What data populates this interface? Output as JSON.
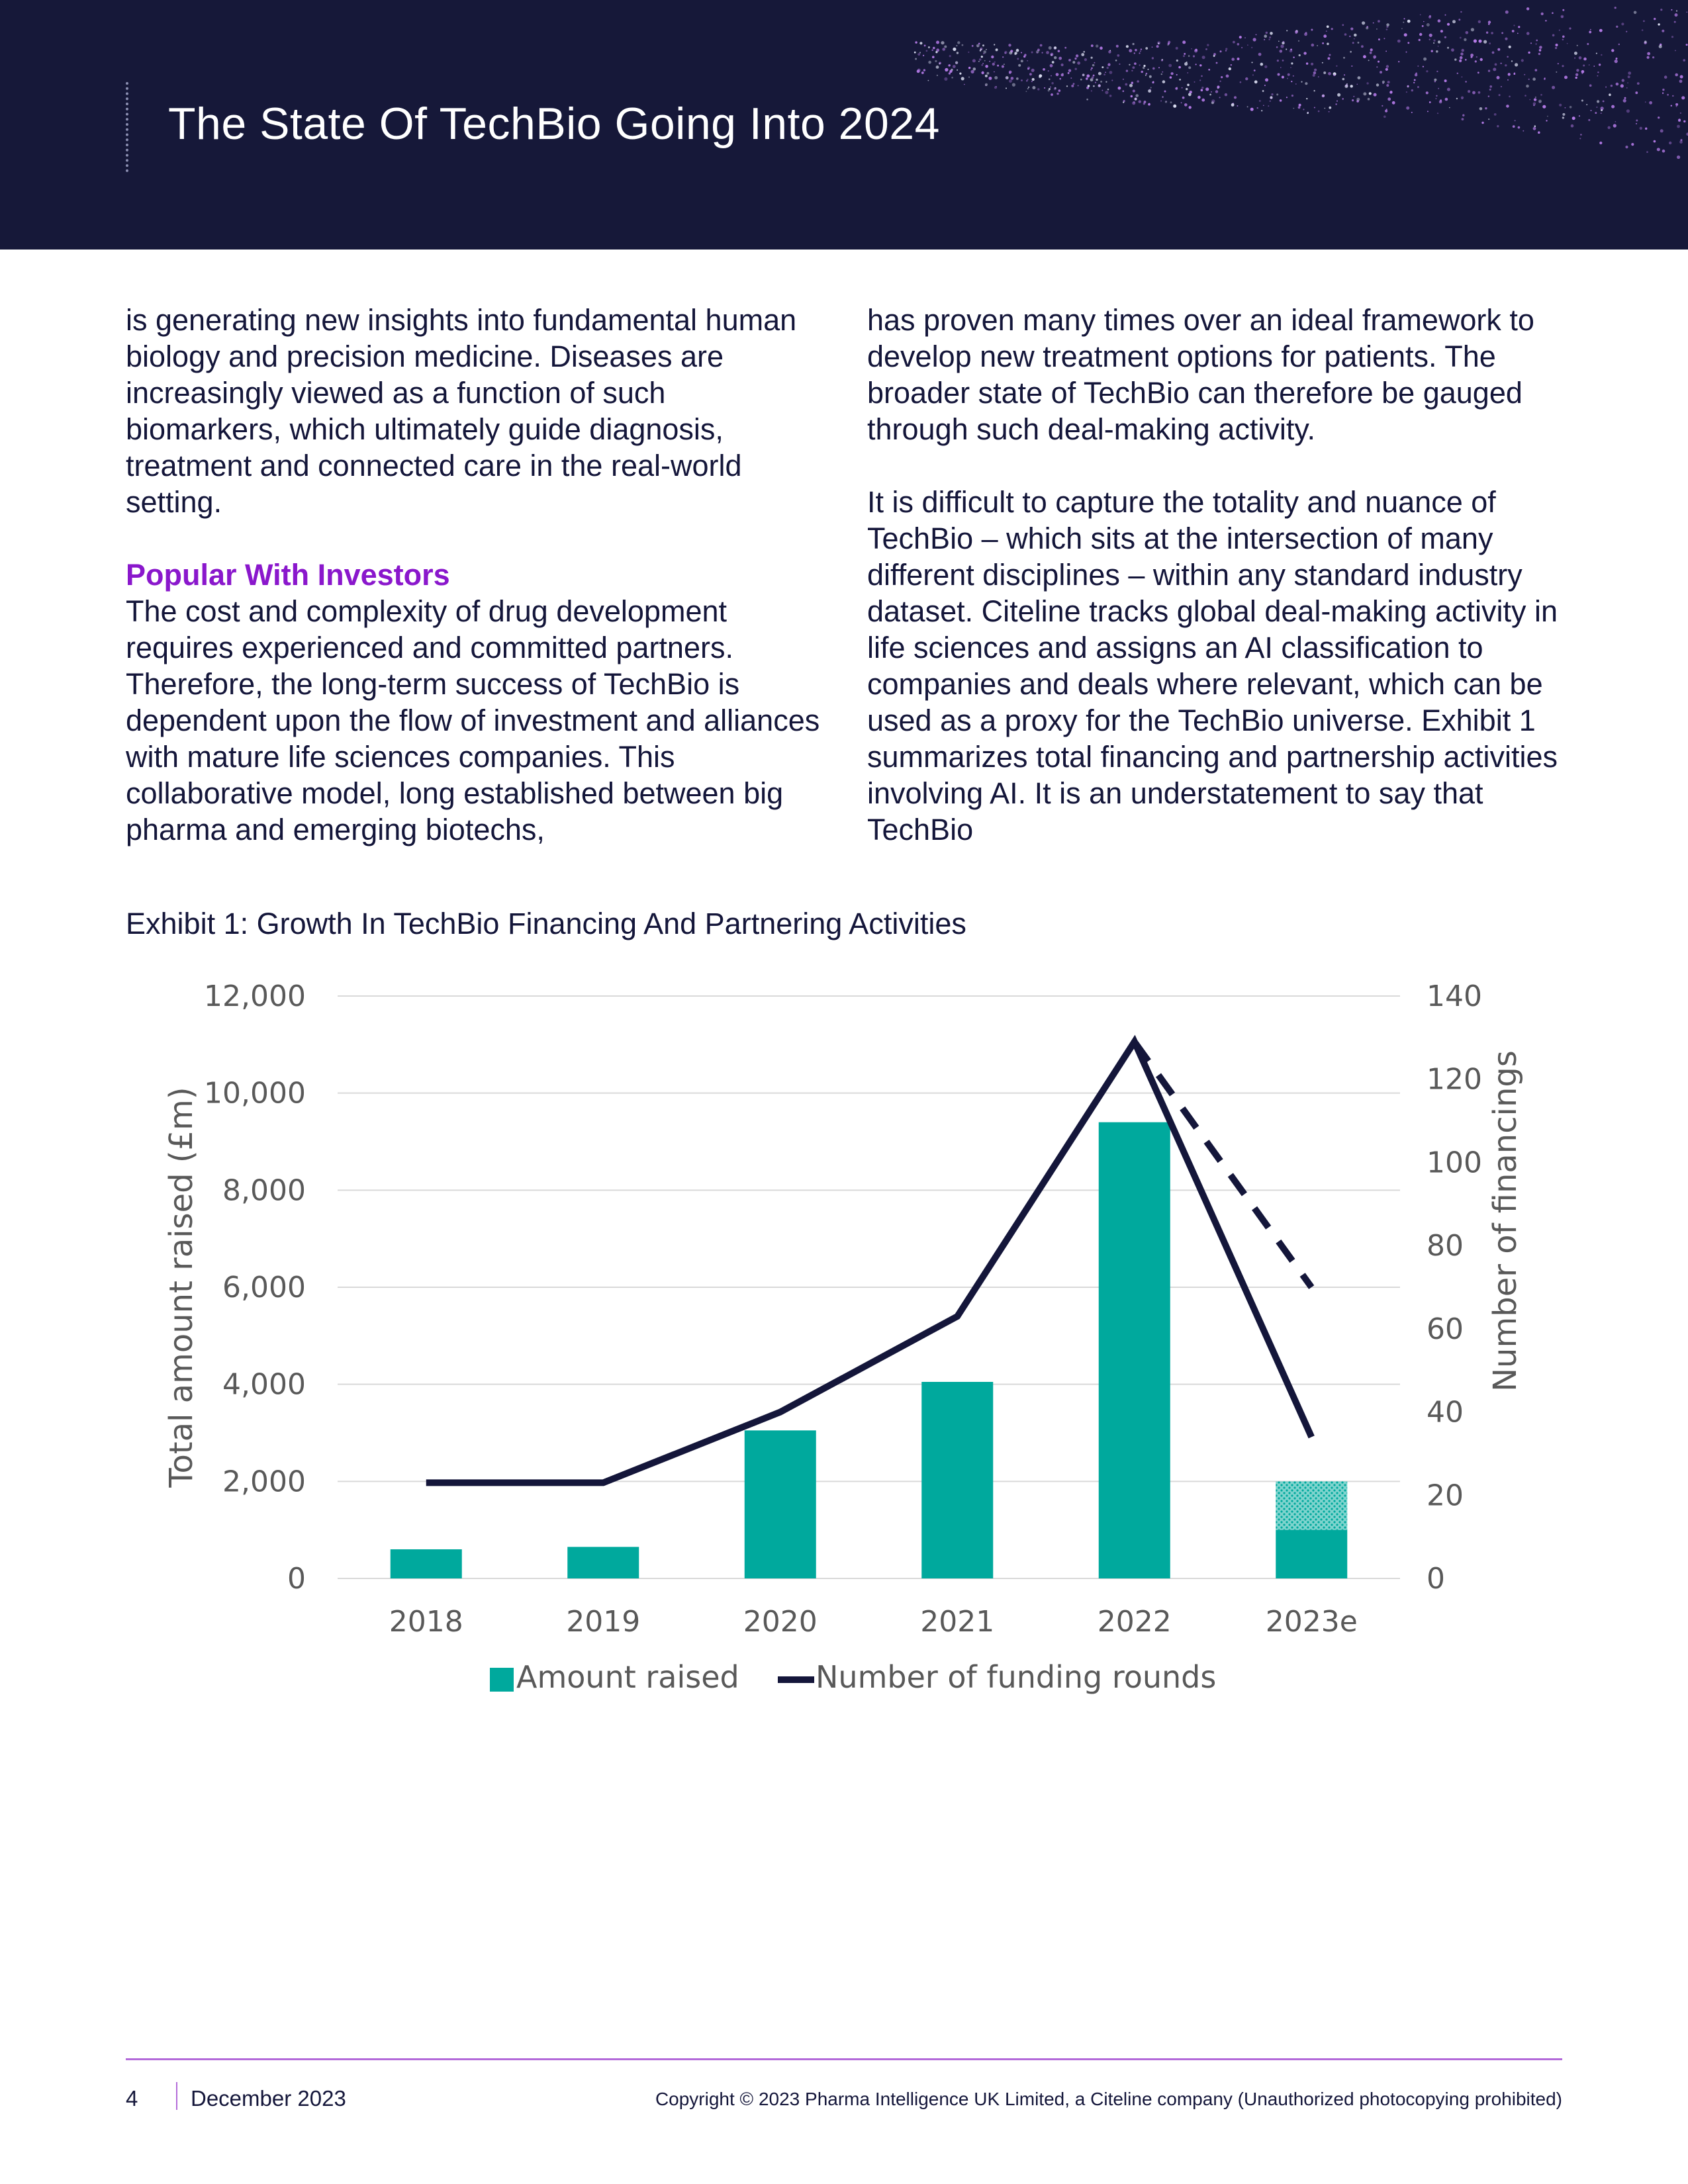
{
  "header": {
    "title": "The State Of TechBio Going Into 2024"
  },
  "columns": {
    "left": {
      "para1": "is generating new insights into fundamental human biology and precision medicine. Diseases are increasingly viewed as a function of such biomarkers, which ultimately guide diagnosis, treatment and connected care in the real-world setting.",
      "subhead": "Popular With Investors",
      "para2": "The cost and complexity of drug development requires experienced and committed partners. Therefore, the long-term success of TechBio is dependent upon the flow of investment and alliances with mature life sciences companies. This collaborative model, long established between big pharma and emerging biotechs,"
    },
    "right": {
      "para1": "has proven many times over an ideal framework to develop new treatment options for patients. The broader state of TechBio can therefore be gauged through such deal-making activity.",
      "para2": "It is difficult to capture the totality and nuance of TechBio – which sits at the intersection of many different disciplines – within any standard industry dataset. Citeline tracks global deal-making activity in life sciences and assigns an AI classification to companies and deals where relevant, which can be used as a proxy for the TechBio universe. Exhibit 1 summarizes total financing and partnership activities involving AI. It is an understatement to say that TechBio"
    }
  },
  "exhibit": {
    "caption": "Exhibit 1: Growth In TechBio Financing And Partnering Activities"
  },
  "chart_data": {
    "type": "bar",
    "categories": [
      "2018",
      "2019",
      "2020",
      "2021",
      "2022",
      "2023e"
    ],
    "series": [
      {
        "name": "Amount raised",
        "type": "bar",
        "axis": "left",
        "values": [
          600,
          650,
          3050,
          4050,
          9400,
          1000
        ],
        "estimated_extra": [
          0,
          0,
          0,
          0,
          0,
          1000
        ],
        "color": "#00a99d"
      },
      {
        "name": "Number of funding rounds",
        "type": "line",
        "axis": "right",
        "values": [
          23,
          23,
          40,
          63,
          129,
          34
        ],
        "projection": {
          "from": "2022",
          "to": "2023e",
          "values": [
            129,
            70
          ],
          "style": "dashed"
        },
        "color": "#14163a"
      }
    ],
    "ylabel": "Total amount raised (£m)",
    "ylim": [
      0,
      12000
    ],
    "yticks": [
      "0",
      "2,000",
      "4,000",
      "6,000",
      "8,000",
      "10,000",
      "12,000"
    ],
    "y2label": "Number of financings",
    "y2lim": [
      0,
      140
    ],
    "y2ticks": [
      "0",
      "20",
      "40",
      "60",
      "80",
      "100",
      "120",
      "140"
    ],
    "grid": true,
    "legend": "bottom"
  },
  "footer": {
    "page": "4",
    "date": "December 2023",
    "copyright": "Copyright © 2023 Pharma Intelligence UK Limited, a Citeline company (Unauthorized photocopying prohibited)"
  },
  "colors": {
    "header_bg": "#161839",
    "accent_purple": "#8a17cc",
    "bar_teal": "#00a99d",
    "line_navy": "#14163a"
  }
}
